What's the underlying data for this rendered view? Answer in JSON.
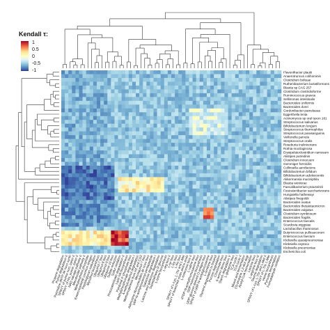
{
  "chart_data": {
    "type": "heatmap",
    "legend": {
      "title": "Kendall τ:",
      "ticks": [
        "1",
        "0.5",
        "0",
        "-0.5",
        "-1"
      ],
      "tick_values": [
        1,
        0.5,
        0,
        -0.5,
        -1
      ],
      "placement": "top-left",
      "colors": [
        "#a50026",
        "#f46d43",
        "#fee090",
        "#ffffbf",
        "#e0f3f8",
        "#abd9e9",
        "#74add1",
        "#4575b4",
        "#313695"
      ]
    },
    "value_range": [
      -1,
      1
    ],
    "rows": [
      "Flavonifractor plautii",
      "Anaerotruncus colihominis",
      "Clostridium bolteae",
      "Ruthenibacterium lactatiformans",
      "Blautia sp CAG 257",
      "Clostridium clostridioforme",
      "Ruminococcus gnavus",
      "Sellimonas intestinalis",
      "Bacteroides uniformis",
      "Bacteroides dorei",
      "Gordonibacter pamelaeae",
      "Eggerthella lenta",
      "Actinomyces sp oral taxon 181",
      "Streptococcus salivarius",
      "Bifidobacterium longum",
      "Streptococcus thermophilus",
      "Streptococcus parasanguinis",
      "Veillonella parvula",
      "Streptococcus oralis",
      "Roseburia inulinivorans",
      "Rothia mucilaginosa",
      "Erysipelatoclostridium ramosum",
      "Alistipes putredinis",
      "Clostridium innocuum",
      "Gemmiger formicilis",
      "Collinsella aerofaciens",
      "Bifidobacterium bifidum",
      "Bifidobacterium adolescentis",
      "Akkermansia muciniphila",
      "Blautia wexlerae",
      "Faecalibacterium prausnitzii",
      "Fusicatenibacter saccharivorans",
      "Hungatella hathewayi",
      "Alistipes finegoldii",
      "Bacteroides ovatus",
      "Bacteroides thetaiotaomicron",
      "Bacteroides vulgatus",
      "Clostridium symbiosum",
      "Bacteroides fragilis",
      "Enterococcus faecalis",
      "Scardovia wiggsiae",
      "Lactobacillus rhamnosus",
      "Butyricicoccus pullicaecorum",
      "Enterococcus faecium",
      "Klebsiella quasipneumoniae",
      "Klebsiella oxytoca",
      "Klebsiella pneumoniae",
      "Escherichia coli"
    ],
    "columns": [
      "Propene degradation",
      "Purine degradation II",
      "Pyrimidine dNTP de novo synth",
      "SPNVY of purine nucl, pyrim II",
      "SPNVY of His, purine, pyrim II",
      "NAD salvage pathway II",
      "Mevalonate pathway II",
      "Methylerythritol phosphate",
      "Entero-bacterial common antigen",
      "Peptidoglycan maturation",
      "Mycothiol biosynthesis",
      "Ubiquinol-7 bios",
      "Ubiquinol-8 bios",
      "Ubiquinol-9 bios",
      "Ubiquinol-10 bios",
      "Sulfate reduction",
      "Sulfur oxidation",
      "Protocatechuate degradation II",
      "Lipid IVA biosynthesis",
      "Pyridoxal 5'-phosphate bios",
      "Methylphosphonate degradation I",
      "4-methylcatechol degradation",
      "Methanogenesis from H2 and CO2",
      "Menaquinol-7 bios",
      "Adenosine ribonucleotides de novo bios",
      "UDP-N-acetylmuramoyl-pentapeptide",
      "Galactose degradation I",
      "Lactose and galactose degradation",
      "Superpathway of glucose",
      "L-lysine biosynthesis",
      "L-arg bios II",
      "L-tyr bios",
      "L-trp bios",
      "L-his bios",
      "SPNVY of L-Lys, L-Thr and L-Met",
      "SPNVY of branched chain amino acids",
      "L-isoleucine bios II",
      "L-valine bios",
      "dTDP-N-acetylthomosamine bios",
      "GDP-mannose biosynthesis",
      "UDP-glucose derived O-antigen bios",
      "SPNVY of UDP-N-acetylglucosamine",
      "L-ornithine bios",
      "Glycerol degradation to butanol",
      "Fucose degradation",
      "Chorismate bios",
      "6-amino deoxy bios",
      "Starch degradation V",
      "L-glutamine bios",
      "TCA cycle I",
      "TCA cycle II",
      "Mixed acid fermentation",
      "(S)-propane 1,2-diol degr",
      "Acetyl CoA fermentation",
      "Lactose bios",
      "L-arginine bios III",
      "Taurine degradation",
      "SPNVY of L-Lys, L-Thr and L-Met II",
      "SPNVY of L-Thr, L-Met",
      "Heme biosynthesis",
      "Pyruvate fermentation",
      "Formaldehyde oxidation"
    ],
    "visible_column_labels": [
      "Propene degradation",
      "Purine degradation II",
      "Pyrimidine dNTP de novo synth",
      "SPNVY of purine nucl, pyrim II",
      "SPNVY of His, purine, pyrim II",
      "NAD salvage pathway II",
      "Mevalonate pathway II",
      "Methylerythritol phosphate",
      "Entero-bacterial common antigen",
      "Peptidoglycan maturation",
      "Mycothiol biosynthesis",
      "Ubiquinol-7 bios",
      "Ubiquinol-8 bios",
      "Ubiquinol-9 bios",
      "Ubiquinol-10 bios",
      "Sulfate reduction",
      "Sulfur oxidation",
      "Protocatechuate degradation II",
      "Lipid IVA biosynthesis",
      "Pyridoxal 5'-phosphate bios",
      "Methylphosphonate degradation I",
      "4-methylcatechol degradation",
      "Methanogenesis from H2 and CO2",
      "Menaquinol-7 bios",
      "Adenosine ribonucleotides de novo bios",
      "UDP-N-acetylmuramoyl-pentapeptide",
      "Galactose degradation I",
      "Lactose and galactose degradation",
      "Superpathway of glucose",
      "L-lysine biosynthesis",
      "L-arg bios II",
      "L-tyr bios",
      "L-trp bios",
      "L-his bios",
      "SPNVY of L-Lys, L-Thr and L-Met",
      "SPNVY of branched chain amino acids",
      "L-isoleucine bios II",
      "L-valine bios",
      "dTDP-N-acetylthomosamine bios",
      "GDP-mannose biosynthesis",
      "UDP-glucose derived O-antigen bios",
      "SPNVY of UDP-N-acetylglucosamine",
      "L-ornithine bios",
      "Glycerol degradation to butanol",
      "Fucose degradation",
      "Chorismate bios",
      "6-amino deoxy bios",
      "Starch degradation V",
      "L-glutamine bios",
      "TCA cycle I",
      "TCA cycle II",
      "Mixed acid fermentation",
      "(S)-propane 1,2-diol degr",
      "Acetyl CoA fermentation",
      "Lactose bios",
      "L-arginine bios III",
      "Taurine degradation",
      "SPNVY of L-Lys, L-Thr and L-Met II",
      "SPNVY of L-Thr, L-Met",
      "Heme biosynthesis",
      "Pyruvate fermentation",
      "Formaldehyde oxidation"
    ],
    "cell_value_estimates": {
      "description_rows": "48 taxa x 62 pathways; values estimated by region",
      "default": -0.35,
      "regions": [
        {
          "rows": [
            0,
            24
          ],
          "cols": [
            0,
            12
          ],
          "value": -0.45
        },
        {
          "rows": [
            25,
            33
          ],
          "cols": [
            0,
            14
          ],
          "value": -0.75
        },
        {
          "rows": [
            34,
            40
          ],
          "cols": [
            0,
            14
          ],
          "value": -0.6
        },
        {
          "rows": [
            42,
            45
          ],
          "cols": [
            0,
            14
          ],
          "value": 0.25
        },
        {
          "rows": [
            28,
            31
          ],
          "cols": [
            16,
            28
          ],
          "value": 0.25
        },
        {
          "rows": [
            42,
            45
          ],
          "cols": [
            14,
            18
          ],
          "value": 0.8
        },
        {
          "rows": [
            10,
            16
          ],
          "cols": [
            36,
            46
          ],
          "value": -0.05
        },
        {
          "rows": [
            36,
            38
          ],
          "cols": [
            40,
            42
          ],
          "value": 0.75
        }
      ]
    }
  }
}
